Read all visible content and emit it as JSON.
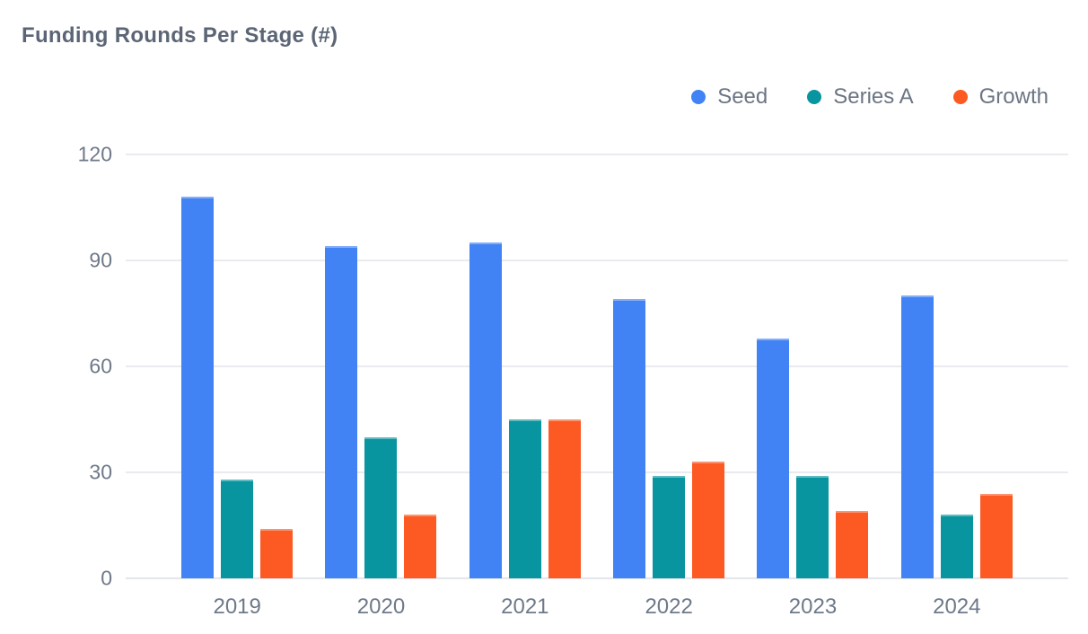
{
  "title": "Funding Rounds Per Stage (#)",
  "colors": {
    "seed": "#4183f4",
    "series_a": "#0895a0",
    "growth": "#fc5a22",
    "gridline": "#e9ebf0",
    "axis_text": "#6e7989",
    "title_text": "#5b6575",
    "legend_text": "#6b7583"
  },
  "chart_data": {
    "type": "bar",
    "title": "Funding Rounds Per Stage (#)",
    "categories": [
      "2019",
      "2020",
      "2021",
      "2022",
      "2023",
      "2024"
    ],
    "series": [
      {
        "name": "Seed",
        "color": "#4183f4",
        "values": [
          108,
          94,
          95,
          79,
          68,
          80
        ]
      },
      {
        "name": "Series A",
        "color": "#0895a0",
        "values": [
          28,
          40,
          45,
          29,
          29,
          18
        ]
      },
      {
        "name": "Growth",
        "color": "#fc5a22",
        "values": [
          14,
          18,
          45,
          33,
          19,
          24
        ]
      }
    ],
    "xlabel": "",
    "ylabel": "",
    "ylim": [
      0,
      120
    ],
    "yticks": [
      120,
      90,
      60,
      30,
      0
    ],
    "grid": "horizontal",
    "legend_position": "top-right"
  }
}
